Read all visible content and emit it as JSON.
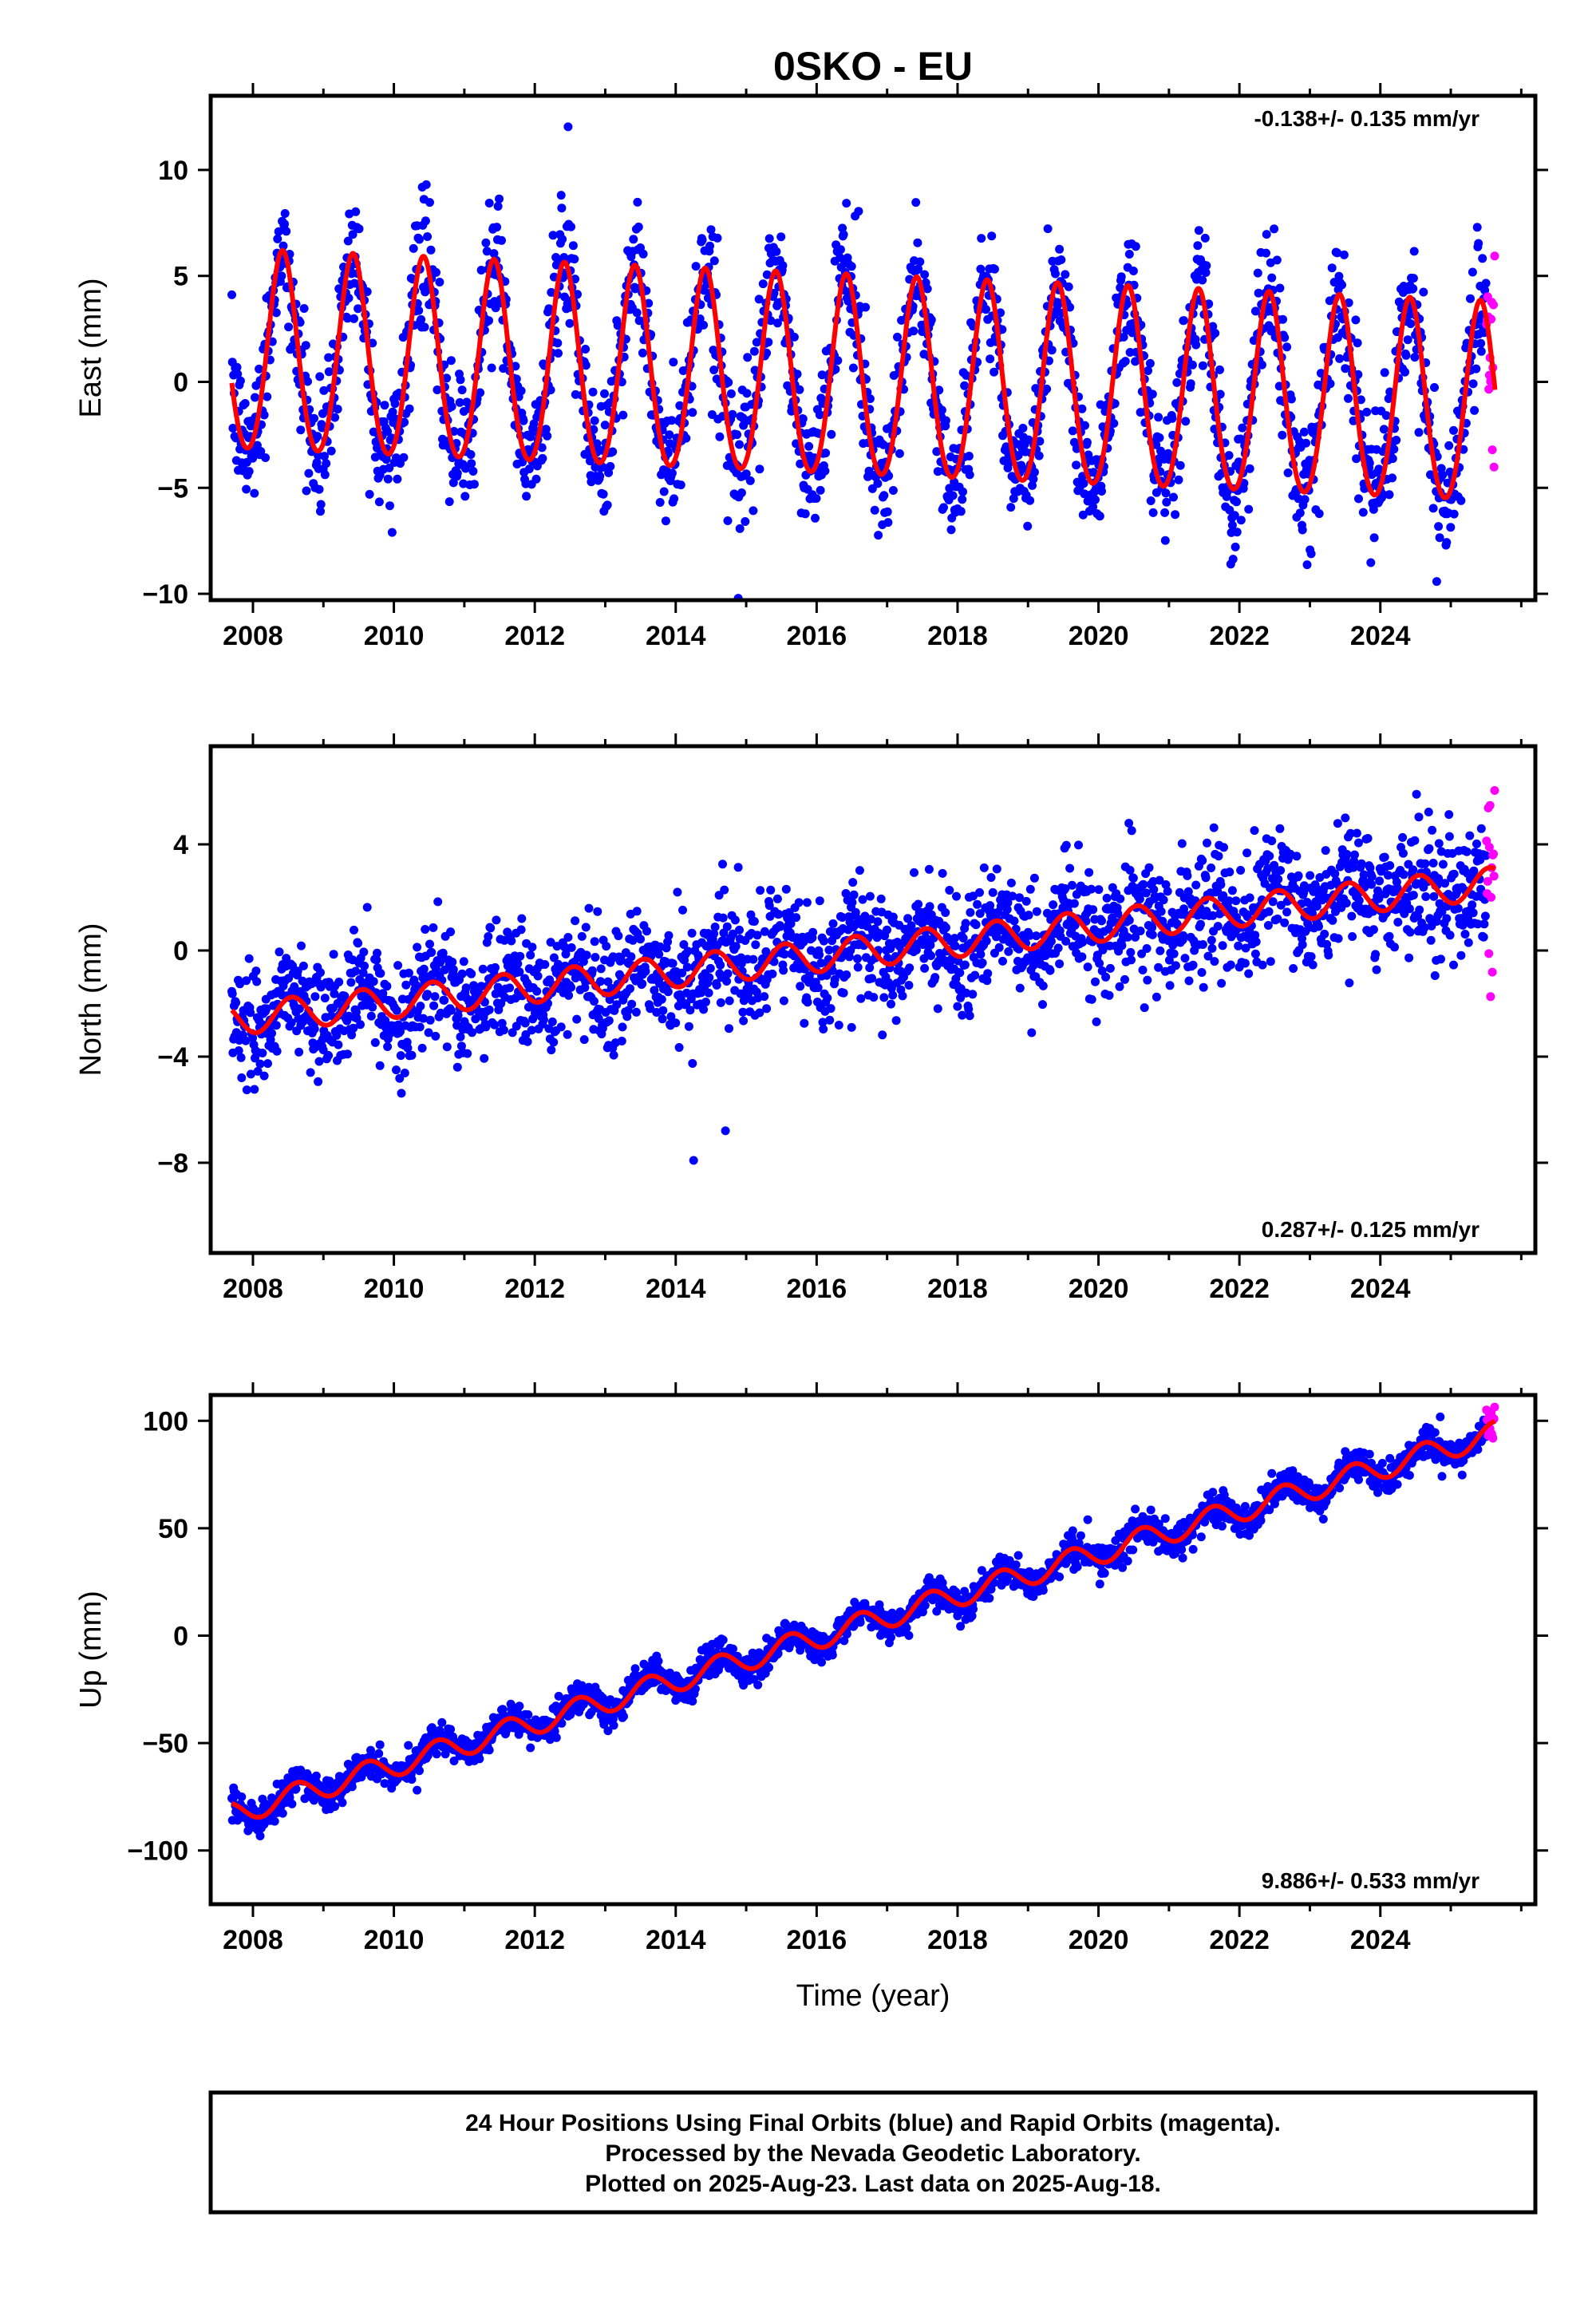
{
  "title": "0SKO - EU",
  "colors": {
    "final": "#0000ff",
    "rapid": "#ff00ff",
    "model": "#ff0000",
    "frame": "#000000"
  },
  "xlabel": "Time (year)",
  "footer": {
    "line1": "24 Hour Positions Using Final Orbits (blue) and Rapid Orbits (magenta).",
    "line2": "Processed by the Nevada Geodetic Laboratory.",
    "line3": "Plotted on 2025-Aug-23. Last data on 2025-Aug-18."
  },
  "chart_data": [
    {
      "type": "scatter",
      "component": "east",
      "ylabel": "East (mm)",
      "rate_text": "-0.138+/- 0.135 mm/yr",
      "rate_position": "top-right",
      "xlim": [
        2007.4,
        2026.2
      ],
      "ylim": [
        -10.3,
        13.5
      ],
      "xticks": [
        2008,
        2010,
        2012,
        2014,
        2016,
        2018,
        2020,
        2022,
        2024
      ],
      "yticks": [
        -10,
        -5,
        0,
        5,
        10
      ],
      "data_range": [
        2007.7,
        2025.63
      ],
      "rapid_range": [
        2025.5,
        2025.63
      ],
      "model": {
        "offset": 1.2,
        "rate_mm_per_yr": -0.138,
        "annual_amplitude": 4.7,
        "annual_peak_year_fraction": 0.42,
        "semiannual_amplitude": 0.4,
        "scatter_sigma": 1.5
      }
    },
    {
      "type": "scatter",
      "component": "north",
      "ylabel": "North (mm)",
      "rate_text": "0.287+/- 0.125 mm/yr",
      "rate_position": "bottom-right",
      "xlim": [
        2007.4,
        2026.2
      ],
      "ylim": [
        -11.4,
        7.7
      ],
      "xticks": [
        2008,
        2010,
        2012,
        2014,
        2016,
        2018,
        2020,
        2022,
        2024
      ],
      "yticks": [
        -8,
        -4,
        0,
        4
      ],
      "data_range": [
        2007.7,
        2025.63
      ],
      "rapid_range": [
        2025.5,
        2025.63
      ],
      "model": {
        "offset": -2.6,
        "rate_mm_per_yr": 0.287,
        "annual_amplitude": 0.6,
        "annual_peak_year_fraction": 0.55,
        "semiannual_amplitude": 0.0,
        "scatter_sigma": 1.1
      }
    },
    {
      "type": "scatter",
      "component": "up",
      "ylabel": "Up (mm)",
      "rate_text": "9.886+/- 0.533 mm/yr",
      "rate_position": "bottom-right",
      "xlim": [
        2007.4,
        2026.2
      ],
      "ylim": [
        -125,
        112
      ],
      "xticks": [
        2008,
        2010,
        2012,
        2014,
        2016,
        2018,
        2020,
        2022,
        2024
      ],
      "yticks": [
        -100,
        -50,
        0,
        50,
        100
      ],
      "data_range": [
        2007.7,
        2025.63
      ],
      "rapid_range": [
        2025.5,
        2025.63
      ],
      "model": {
        "offset": -83,
        "rate_mm_per_yr": 9.886,
        "annual_amplitude": 5.5,
        "annual_peak_year_fraction": 0.62,
        "semiannual_amplitude": 0.0,
        "scatter_sigma": 3.5
      }
    }
  ]
}
